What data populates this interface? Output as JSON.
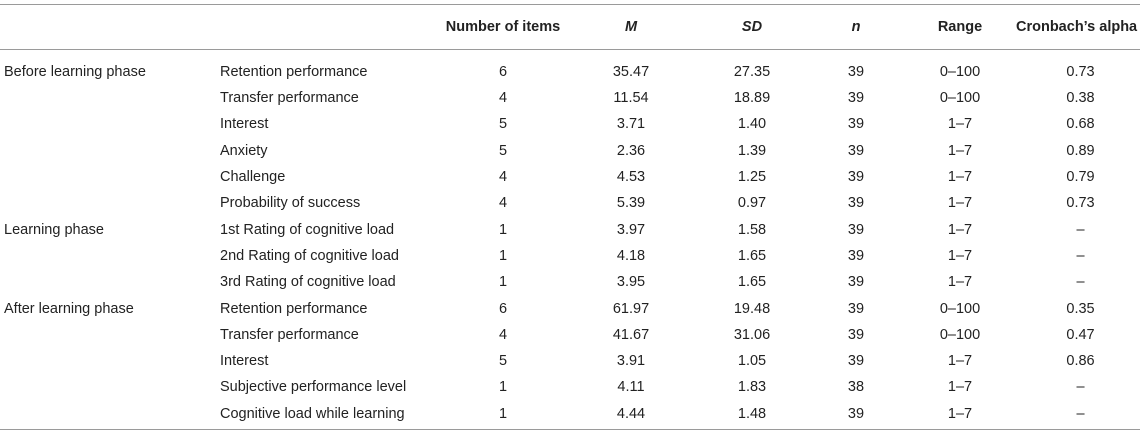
{
  "table": {
    "headers": [
      "",
      "",
      "Number of items",
      "M",
      "SD",
      "n",
      "Range",
      "Cronbach’s alpha"
    ],
    "rows": [
      {
        "phase": "Before learning phase",
        "measure": "Retention performance",
        "items": "6",
        "M": "35.47",
        "SD": "27.35",
        "n": "39",
        "range": "0–100",
        "alpha": "0.73"
      },
      {
        "phase": "",
        "measure": "Transfer performance",
        "items": "4",
        "M": "11.54",
        "SD": "18.89",
        "n": "39",
        "range": "0–100",
        "alpha": "0.38"
      },
      {
        "phase": "",
        "measure": "Interest",
        "items": "5",
        "M": "3.71",
        "SD": "1.40",
        "n": "39",
        "range": "1–7",
        "alpha": "0.68"
      },
      {
        "phase": "",
        "measure": "Anxiety",
        "items": "5",
        "M": "2.36",
        "SD": "1.39",
        "n": "39",
        "range": "1–7",
        "alpha": "0.89"
      },
      {
        "phase": "",
        "measure": "Challenge",
        "items": "4",
        "M": "4.53",
        "SD": "1.25",
        "n": "39",
        "range": "1–7",
        "alpha": "0.79"
      },
      {
        "phase": "",
        "measure": "Probability of success",
        "items": "4",
        "M": "5.39",
        "SD": "0.97",
        "n": "39",
        "range": "1–7",
        "alpha": "0.73"
      },
      {
        "phase": "Learning phase",
        "measure": "1st Rating of cognitive load",
        "items": "1",
        "M": "3.97",
        "SD": "1.58",
        "n": "39",
        "range": "1–7",
        "alpha": "–"
      },
      {
        "phase": "",
        "measure": "2nd Rating of cognitive load",
        "items": "1",
        "M": "4.18",
        "SD": "1.65",
        "n": "39",
        "range": "1–7",
        "alpha": "–"
      },
      {
        "phase": "",
        "measure": "3rd Rating of cognitive load",
        "items": "1",
        "M": "3.95",
        "SD": "1.65",
        "n": "39",
        "range": "1–7",
        "alpha": "–"
      },
      {
        "phase": "After learning phase",
        "measure": "Retention performance",
        "items": "6",
        "M": "61.97",
        "SD": "19.48",
        "n": "39",
        "range": "0–100",
        "alpha": "0.35"
      },
      {
        "phase": "",
        "measure": "Transfer performance",
        "items": "4",
        "M": "41.67",
        "SD": "31.06",
        "n": "39",
        "range": "0–100",
        "alpha": "0.47"
      },
      {
        "phase": "",
        "measure": "Interest",
        "items": "5",
        "M": "3.91",
        "SD": "1.05",
        "n": "39",
        "range": "1–7",
        "alpha": "0.86"
      },
      {
        "phase": "",
        "measure": "Subjective performance level",
        "items": "1",
        "M": "4.11",
        "SD": "1.83",
        "n": "38",
        "range": "1–7",
        "alpha": "–"
      },
      {
        "phase": "",
        "measure": "Cognitive load while learning",
        "items": "1",
        "M": "4.44",
        "SD": "1.48",
        "n": "39",
        "range": "1–7",
        "alpha": "–"
      }
    ]
  },
  "colors": {
    "rule": "#9a9a9a",
    "text": "#222222"
  }
}
